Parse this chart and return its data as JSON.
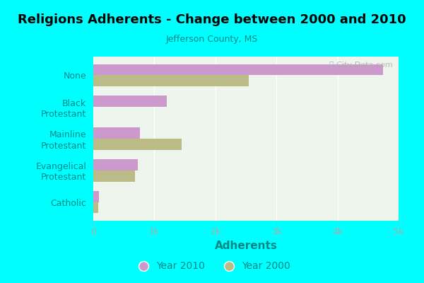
{
  "title": "Religions Adherents - Change between 2000 and 2010",
  "subtitle": "Jefferson County, MS",
  "xlabel": "Adherents",
  "watermark": "ⓘ City-Data.com",
  "categories": [
    "Catholic",
    "Evangelical\nProtestant",
    "Mainline\nProtestant",
    "Black\nProtestant",
    "None"
  ],
  "values_2010": [
    95,
    730,
    760,
    1200,
    4750
  ],
  "values_2000": [
    80,
    680,
    1450,
    0,
    2550
  ],
  "color_2010": "#cc99cc",
  "color_2000": "#bbbb88",
  "bg_outer": "#00ffff",
  "bg_chart": "#eef5ec",
  "xlim": [
    0,
    5000
  ],
  "xticks": [
    0,
    1000,
    2000,
    3000,
    4000,
    5000
  ],
  "xticklabels": [
    "0",
    "1k",
    "2k",
    "3k",
    "4k",
    "5k"
  ],
  "bar_height": 0.35,
  "figsize": [
    6.0,
    4.0
  ],
  "dpi": 100
}
